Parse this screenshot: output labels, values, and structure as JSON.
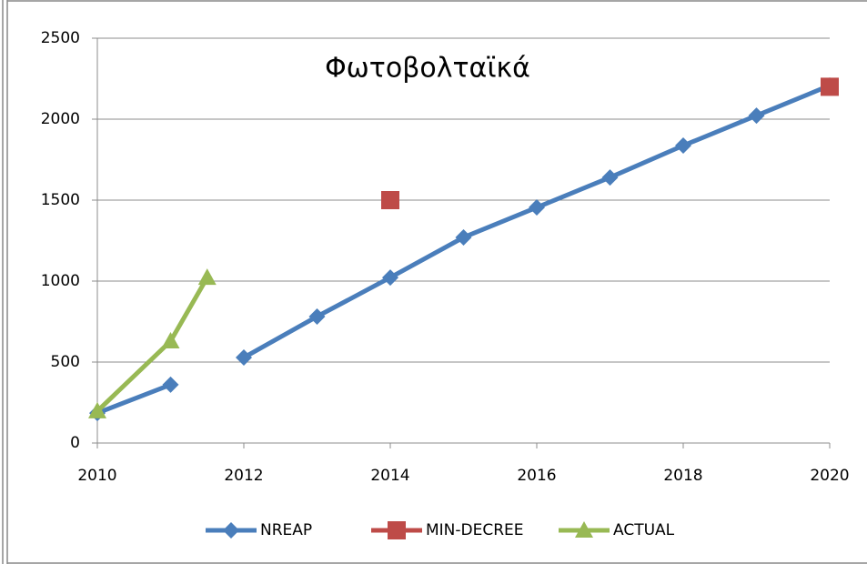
{
  "chart_data": {
    "type": "line",
    "title": "Φωτοβολταϊκά",
    "series": [
      {
        "name": "NREAP",
        "color": "#4a7ebb",
        "marker": "diamond",
        "line": true,
        "x": [
          2010,
          2011,
          2011.5,
          2012,
          2013,
          2014,
          2015,
          2016,
          2017,
          2018,
          2019,
          2020
        ],
        "values": [
          185,
          360,
          null,
          528,
          781,
          1022,
          1270,
          1455,
          1640,
          1837,
          2022,
          2208
        ]
      },
      {
        "name": "MIN-DECREE",
        "color": "#be4b48",
        "marker": "square",
        "line": false,
        "x": [
          2014,
          2020
        ],
        "values": [
          1500,
          2200
        ]
      },
      {
        "name": "ACTUAL",
        "color": "#98b954",
        "marker": "triangle",
        "line": true,
        "x": [
          2010,
          2011,
          2011.5
        ],
        "values": [
          197,
          629,
          1022
        ]
      }
    ],
    "xlim": [
      2010,
      2020
    ],
    "xticks": [
      2010,
      2012,
      2014,
      2016,
      2018,
      2020
    ],
    "ylim": [
      0,
      2500
    ],
    "yticks": [
      0,
      500,
      1000,
      1500,
      2000,
      2500
    ],
    "grid": true,
    "legend": "bottom"
  }
}
